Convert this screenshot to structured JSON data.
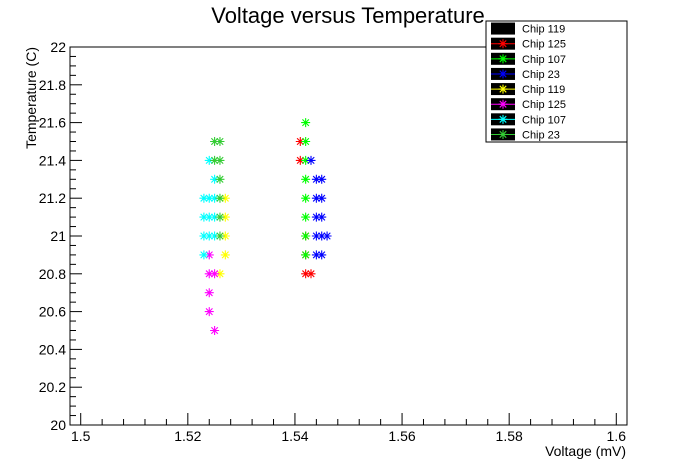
{
  "chart_data": {
    "type": "scatter",
    "title": "Voltage versus Temperature",
    "xlabel": "Voltage (mV)",
    "ylabel": "Temperature (C)",
    "xlim": [
      1.498,
      1.602
    ],
    "ylim": [
      20,
      22
    ],
    "x_ticks": [
      "1.5",
      "1.52",
      "1.54",
      "1.56",
      "1.58",
      "1.6"
    ],
    "y_ticks": [
      "20",
      "20.2",
      "20.4",
      "20.6",
      "20.8",
      "21",
      "21.2",
      "21.4",
      "21.6",
      "21.8",
      "22"
    ],
    "grid": false,
    "legend_position": "top-right",
    "series": [
      {
        "name": "Chip 119",
        "color": "#000000",
        "marker": "asterisk",
        "points": []
      },
      {
        "name": "Chip 125",
        "color": "#ff0000",
        "marker": "asterisk",
        "points": [
          [
            1.541,
            21.5
          ],
          [
            1.541,
            21.4
          ],
          [
            1.542,
            21.0
          ],
          [
            1.542,
            20.9
          ],
          [
            1.542,
            20.8
          ],
          [
            1.543,
            20.8
          ]
        ]
      },
      {
        "name": "Chip 107",
        "color": "#00ff00",
        "marker": "asterisk",
        "points": [
          [
            1.542,
            21.6
          ],
          [
            1.542,
            21.5
          ],
          [
            1.542,
            21.4
          ],
          [
            1.542,
            21.3
          ],
          [
            1.542,
            21.2
          ],
          [
            1.542,
            21.1
          ],
          [
            1.542,
            21.0
          ],
          [
            1.542,
            20.9
          ]
        ]
      },
      {
        "name": "Chip 23",
        "color": "#0000ff",
        "marker": "asterisk",
        "points": [
          [
            1.543,
            21.4
          ],
          [
            1.544,
            21.3
          ],
          [
            1.545,
            21.3
          ],
          [
            1.544,
            21.2
          ],
          [
            1.545,
            21.2
          ],
          [
            1.544,
            21.1
          ],
          [
            1.545,
            21.1
          ],
          [
            1.544,
            21.0
          ],
          [
            1.545,
            21.0
          ],
          [
            1.546,
            21.0
          ],
          [
            1.544,
            20.9
          ],
          [
            1.545,
            20.9
          ]
        ]
      },
      {
        "name": "Chip 119",
        "color": "#ffff00",
        "marker": "asterisk",
        "points": [
          [
            1.527,
            21.2
          ],
          [
            1.527,
            21.1
          ],
          [
            1.527,
            21.0
          ],
          [
            1.527,
            20.9
          ],
          [
            1.526,
            20.8
          ]
        ]
      },
      {
        "name": "Chip 125",
        "color": "#ff00ff",
        "marker": "asterisk",
        "points": [
          [
            1.524,
            20.9
          ],
          [
            1.524,
            20.8
          ],
          [
            1.525,
            20.8
          ],
          [
            1.524,
            20.7
          ],
          [
            1.524,
            20.6
          ],
          [
            1.525,
            20.5
          ]
        ]
      },
      {
        "name": "Chip 107",
        "color": "#00ffff",
        "marker": "asterisk",
        "points": [
          [
            1.524,
            21.4
          ],
          [
            1.525,
            21.3
          ],
          [
            1.523,
            21.2
          ],
          [
            1.524,
            21.2
          ],
          [
            1.523,
            21.1
          ],
          [
            1.524,
            21.1
          ],
          [
            1.523,
            21.0
          ],
          [
            1.524,
            21.0
          ],
          [
            1.525,
            21.0
          ],
          [
            1.523,
            20.9
          ],
          [
            1.525,
            21.1
          ],
          [
            1.525,
            21.2
          ]
        ]
      },
      {
        "name": "Chip 23",
        "color": "#33cc33",
        "marker": "asterisk",
        "points": [
          [
            1.525,
            21.5
          ],
          [
            1.526,
            21.5
          ],
          [
            1.525,
            21.4
          ],
          [
            1.526,
            21.4
          ],
          [
            1.526,
            21.3
          ],
          [
            1.526,
            21.2
          ],
          [
            1.526,
            21.1
          ],
          [
            1.526,
            21.0
          ]
        ]
      }
    ]
  }
}
